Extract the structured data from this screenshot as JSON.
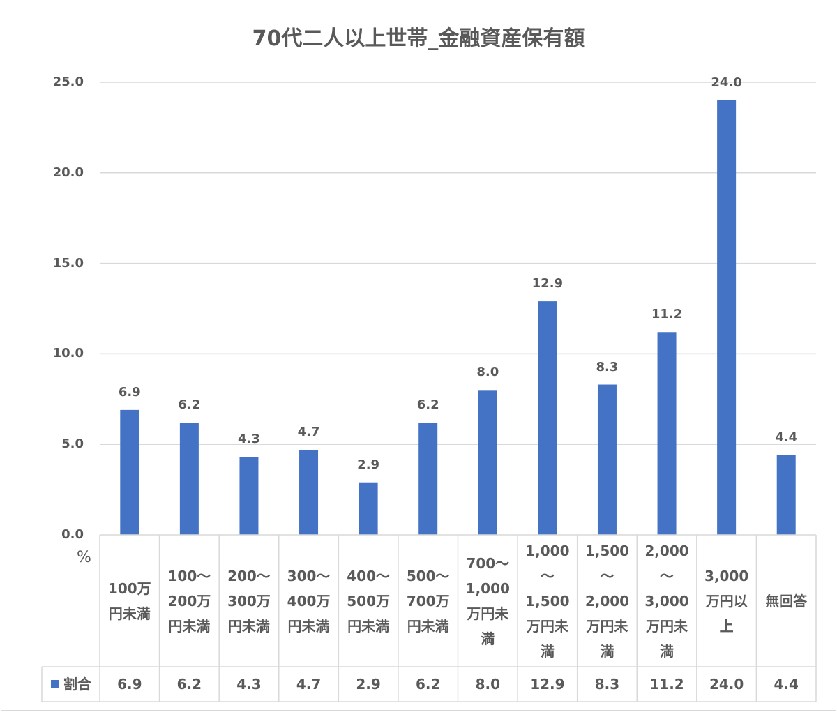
{
  "chart_data": {
    "type": "bar",
    "title": "70代二人以上世帯_金融資産保有額",
    "ylabel": "%",
    "ylim": [
      0,
      25
    ],
    "yticks": [
      "0.0",
      "5.0",
      "10.0",
      "15.0",
      "20.0",
      "25.0"
    ],
    "grid": true,
    "categories": [
      "100万\n円未満",
      "100〜\n200万\n円未満",
      "200〜\n300万\n円未満",
      "300〜\n400万\n円未満",
      "400〜\n500万\n円未満",
      "500〜\n700万\n円未満",
      "700〜\n1,000\n万円未\n満",
      "1,000\n〜\n1,500\n万円未\n満",
      "1,500\n〜\n2,000\n万円未\n満",
      "2,000\n〜\n3,000\n万円未\n満",
      "3,000\n万円以\n上",
      "無回答"
    ],
    "series": [
      {
        "name": "割合",
        "values": [
          6.9,
          6.2,
          4.3,
          4.7,
          2.9,
          6.2,
          8.0,
          12.9,
          8.3,
          11.2,
          24.0,
          4.4
        ],
        "labels": [
          "6.9",
          "6.2",
          "4.3",
          "4.7",
          "2.9",
          "6.2",
          "8.0",
          "12.9",
          "8.3",
          "11.2",
          "24.0",
          "4.4"
        ],
        "color": "#4472C4"
      }
    ],
    "data_table": true
  }
}
